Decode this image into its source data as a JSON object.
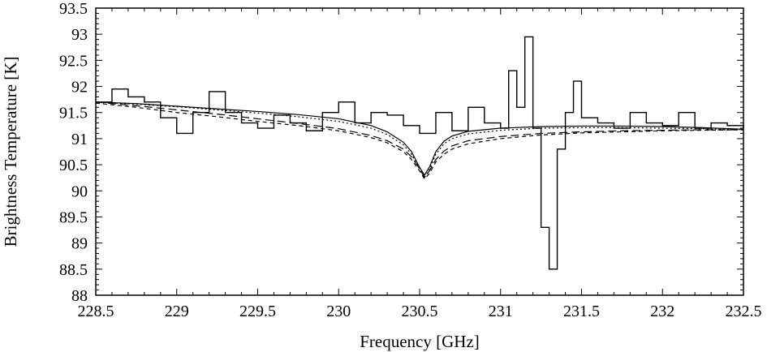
{
  "chart_data": {
    "type": "line",
    "title": "",
    "xlabel": "Frequency [GHz]",
    "ylabel": "Brightness Temperature [K]",
    "xlim": [
      228.5,
      232.5
    ],
    "ylim": [
      88,
      93.5
    ],
    "xticks": [
      228.5,
      229,
      229.5,
      230,
      230.5,
      231,
      231.5,
      232,
      232.5
    ],
    "yticks": [
      88,
      88.5,
      89,
      89.5,
      90,
      90.5,
      91,
      91.5,
      92,
      92.5,
      93,
      93.5
    ],
    "xtick_labels": [
      "228.5",
      "229",
      "229.5",
      "230",
      "230.5",
      "231",
      "231.5",
      "232",
      "232.5"
    ],
    "ytick_labels": [
      "88",
      "88.5",
      "89",
      "89.5",
      "90",
      "90.5",
      "91",
      "91.5",
      "92",
      "92.5",
      "93",
      "93.5"
    ],
    "grid": false,
    "legend": "none",
    "series": [
      {
        "style": "step",
        "x": [
          228.5,
          228.6,
          228.7,
          228.8,
          228.9,
          229.0,
          229.1,
          229.2,
          229.3,
          229.4,
          229.5,
          229.6,
          229.7,
          229.8,
          229.9,
          230.0,
          230.1,
          230.2,
          230.3,
          230.4,
          230.5,
          230.6,
          230.7,
          230.8,
          230.9,
          231.0,
          231.05,
          231.1,
          231.15,
          231.2,
          231.25,
          231.3,
          231.35,
          231.4,
          231.45,
          231.5,
          231.6,
          231.7,
          231.8,
          231.9,
          232.0,
          232.1,
          232.2,
          232.3,
          232.4,
          232.5
        ],
        "values": [
          91.7,
          91.95,
          91.8,
          91.7,
          91.4,
          91.1,
          91.5,
          91.9,
          91.5,
          91.3,
          91.2,
          91.45,
          91.3,
          91.15,
          91.5,
          91.7,
          91.3,
          91.5,
          91.45,
          91.25,
          91.1,
          91.5,
          91.15,
          91.6,
          91.3,
          91.2,
          92.3,
          91.6,
          92.95,
          91.2,
          89.3,
          88.5,
          90.8,
          91.5,
          92.1,
          91.4,
          91.3,
          91.2,
          91.5,
          91.3,
          91.25,
          91.5,
          91.2,
          91.3,
          91.25,
          91.2
        ]
      },
      {
        "style": "solid",
        "x": [
          228.5,
          228.75,
          229.0,
          229.25,
          229.5,
          229.75,
          230.0,
          230.2,
          230.3,
          230.4,
          230.45,
          230.5,
          230.53,
          230.56,
          230.6,
          230.65,
          230.7,
          230.8,
          231.0,
          231.25,
          231.5,
          231.75,
          232.0,
          232.25,
          232.5
        ],
        "values": [
          91.7,
          91.67,
          91.62,
          91.57,
          91.52,
          91.46,
          91.38,
          91.25,
          91.13,
          90.93,
          90.75,
          90.45,
          90.3,
          90.45,
          90.75,
          90.95,
          91.05,
          91.14,
          91.2,
          91.23,
          91.24,
          91.24,
          91.23,
          91.21,
          91.18
        ]
      },
      {
        "style": "dotted",
        "x": [
          228.5,
          228.75,
          229.0,
          229.25,
          229.5,
          229.75,
          230.0,
          230.2,
          230.3,
          230.4,
          230.45,
          230.5,
          230.53,
          230.56,
          230.6,
          230.65,
          230.7,
          230.8,
          231.0,
          231.25,
          231.5,
          231.75,
          232.0,
          232.25,
          232.5
        ],
        "values": [
          91.7,
          91.66,
          91.61,
          91.55,
          91.49,
          91.42,
          91.33,
          91.2,
          91.08,
          90.88,
          90.7,
          90.42,
          90.25,
          90.4,
          90.7,
          90.9,
          91.0,
          91.09,
          91.16,
          91.2,
          91.21,
          91.21,
          91.2,
          91.19,
          91.17
        ]
      },
      {
        "style": "dashed",
        "x": [
          228.5,
          228.75,
          229.0,
          229.25,
          229.5,
          229.75,
          230.0,
          230.2,
          230.3,
          230.4,
          230.45,
          230.5,
          230.53,
          230.56,
          230.6,
          230.65,
          230.7,
          230.8,
          231.0,
          231.25,
          231.5,
          231.75,
          232.0,
          232.25,
          232.5
        ],
        "values": [
          91.68,
          91.6,
          91.5,
          91.42,
          91.33,
          91.25,
          91.15,
          91.02,
          90.92,
          90.75,
          90.6,
          90.38,
          90.23,
          90.33,
          90.55,
          90.7,
          90.8,
          90.9,
          91.0,
          91.07,
          91.11,
          91.13,
          91.15,
          91.16,
          91.17
        ]
      },
      {
        "style": "dashed-long",
        "x": [
          228.5,
          228.75,
          229.0,
          229.25,
          229.5,
          229.75,
          230.0,
          230.2,
          230.3,
          230.4,
          230.45,
          230.5,
          230.53,
          230.56,
          230.6,
          230.65,
          230.7,
          230.8,
          231.0,
          231.25,
          231.5,
          231.75,
          232.0,
          232.25,
          232.5
        ],
        "values": [
          91.7,
          91.63,
          91.55,
          91.47,
          91.38,
          91.29,
          91.19,
          91.06,
          90.96,
          90.8,
          90.65,
          90.42,
          90.26,
          90.38,
          90.6,
          90.76,
          90.86,
          90.96,
          91.04,
          91.1,
          91.13,
          91.15,
          91.16,
          91.17,
          91.17
        ]
      }
    ]
  }
}
